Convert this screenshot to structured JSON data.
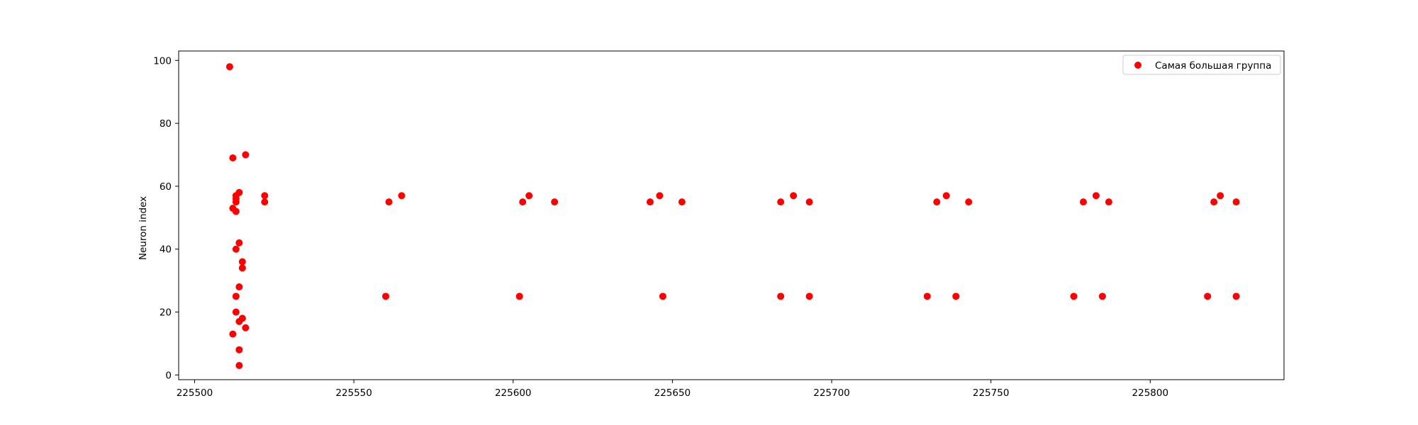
{
  "chart_data": {
    "type": "scatter",
    "title": "",
    "xlabel": "",
    "ylabel": "Neuron index",
    "xlim": [
      225495,
      225842
    ],
    "ylim": [
      -1.5,
      103
    ],
    "xticks": [
      225500,
      225550,
      225600,
      225650,
      225700,
      225750,
      225800
    ],
    "yticks": [
      0,
      20,
      40,
      60,
      80,
      100
    ],
    "grid": false,
    "legend": {
      "position": "top-right",
      "entries": [
        "Самая большая группа"
      ]
    },
    "series": [
      {
        "name": "Самая большая группа",
        "color": "#ff0000",
        "marker": "circle",
        "points": [
          [
            225511,
            98
          ],
          [
            225512,
            69
          ],
          [
            225516,
            70
          ],
          [
            225512,
            53
          ],
          [
            225513,
            52
          ],
          [
            225513,
            55
          ],
          [
            225513,
            56
          ],
          [
            225513,
            57
          ],
          [
            225514,
            58
          ],
          [
            225522,
            55
          ],
          [
            225522,
            57
          ],
          [
            225513,
            40
          ],
          [
            225514,
            42
          ],
          [
            225515,
            36
          ],
          [
            225515,
            34
          ],
          [
            225514,
            28
          ],
          [
            225513,
            25
          ],
          [
            225513,
            20
          ],
          [
            225514,
            17
          ],
          [
            225515,
            18
          ],
          [
            225516,
            15
          ],
          [
            225512,
            13
          ],
          [
            225514,
            8
          ],
          [
            225514,
            3
          ],
          [
            225561,
            55
          ],
          [
            225565,
            57
          ],
          [
            225560,
            25
          ],
          [
            225603,
            55
          ],
          [
            225605,
            57
          ],
          [
            225613,
            55
          ],
          [
            225602,
            25
          ],
          [
            225643,
            55
          ],
          [
            225646,
            57
          ],
          [
            225653,
            55
          ],
          [
            225647,
            25
          ],
          [
            225684,
            55
          ],
          [
            225688,
            57
          ],
          [
            225693,
            55
          ],
          [
            225684,
            25
          ],
          [
            225693,
            25
          ],
          [
            225733,
            55
          ],
          [
            225736,
            57
          ],
          [
            225743,
            55
          ],
          [
            225730,
            25
          ],
          [
            225739,
            25
          ],
          [
            225779,
            55
          ],
          [
            225783,
            57
          ],
          [
            225787,
            55
          ],
          [
            225776,
            25
          ],
          [
            225785,
            25
          ],
          [
            225820,
            55
          ],
          [
            225822,
            57
          ],
          [
            225827,
            55
          ],
          [
            225818,
            25
          ],
          [
            225827,
            25
          ]
        ]
      }
    ]
  }
}
